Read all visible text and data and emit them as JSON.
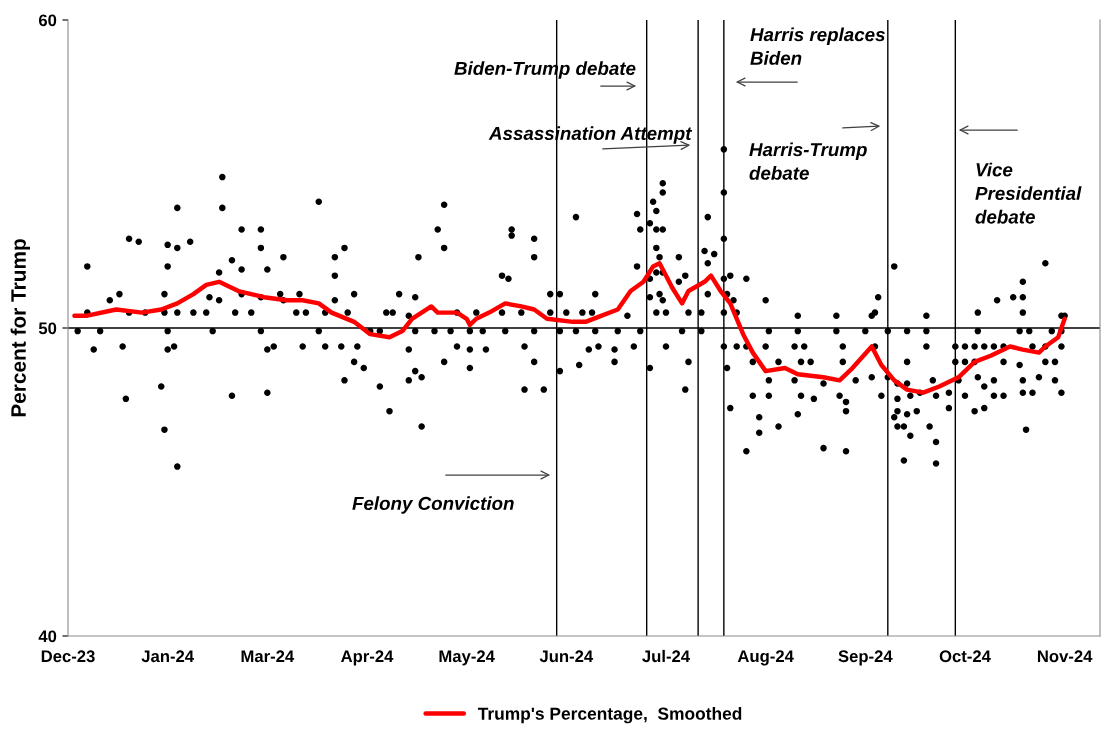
{
  "chart_data": {
    "type": "scatter",
    "ylabel": "Percent for Trump",
    "xlim": [
      "2023-12-30",
      "2024-11-15"
    ],
    "xticks": [
      {
        "value": "2023-12-30",
        "label": "Dec-23"
      },
      {
        "value": "2024-01-30",
        "label": "Jan-24"
      },
      {
        "value": "2024-03-01",
        "label": "Mar-24"
      },
      {
        "value": "2024-04-01",
        "label": "Apr-24"
      },
      {
        "value": "2024-05-02",
        "label": "May-24"
      },
      {
        "value": "2024-06-02",
        "label": "Jun-24"
      },
      {
        "value": "2024-07-03",
        "label": "Jul-24"
      },
      {
        "value": "2024-08-03",
        "label": "Aug-24"
      },
      {
        "value": "2024-09-03",
        "label": "Sep-24"
      },
      {
        "value": "2024-10-04",
        "label": "Oct-24"
      },
      {
        "value": "2024-11-04",
        "label": "Nov-24"
      }
    ],
    "ylim": [
      40,
      60
    ],
    "yticks": [
      40,
      50,
      60
    ],
    "grid": false,
    "legend": "bottom",
    "ref_lines": [
      {
        "axis": "y",
        "value": 50,
        "color": "#000000"
      },
      {
        "axis": "x",
        "value": "2024-05-30",
        "label": "Felony Conviction",
        "color": "#000000"
      },
      {
        "axis": "x",
        "value": "2024-06-27",
        "label": "Biden-Trump debate",
        "color": "#000000"
      },
      {
        "axis": "x",
        "value": "2024-07-13",
        "label": "Assassination Attempt",
        "color": "#000000"
      },
      {
        "axis": "x",
        "value": "2024-07-21",
        "label": "Harris replaces\nBiden",
        "color": "#000000"
      },
      {
        "axis": "x",
        "value": "2024-09-10",
        "label": "Harris-Trump\ndebate",
        "color": "#000000"
      },
      {
        "axis": "x",
        "value": "2024-10-01",
        "label": "Vice\nPresidential\ndebate",
        "color": "#000000"
      }
    ],
    "series": [
      {
        "type": "scatter",
        "color": "#000000",
        "marker": "circle",
        "x": [
          "2024-01-02",
          "2024-01-05",
          "2024-01-05",
          "2024-01-07",
          "2024-01-09",
          "2024-01-12",
          "2024-01-15",
          "2024-01-16",
          "2024-01-17",
          "2024-01-18",
          "2024-01-18",
          "2024-01-21",
          "2024-01-23",
          "2024-01-28",
          "2024-01-29",
          "2024-01-29",
          "2024-01-30",
          "2024-01-30",
          "2024-01-29",
          "2024-01-30",
          "2024-01-30",
          "2024-02-01",
          "2024-02-02",
          "2024-02-02",
          "2024-02-02",
          "2024-02-02",
          "2024-02-06",
          "2024-02-07",
          "2024-02-11",
          "2024-02-12",
          "2024-02-13",
          "2024-02-15",
          "2024-02-15",
          "2024-02-16",
          "2024-02-16",
          "2024-02-19",
          "2024-02-19",
          "2024-02-20",
          "2024-02-22",
          "2024-02-22",
          "2024-02-22",
          "2024-02-25",
          "2024-02-28",
          "2024-02-28",
          "2024-02-28",
          "2024-02-28",
          "2024-03-01",
          "2024-03-01",
          "2024-03-01",
          "2024-03-03",
          "2024-03-05",
          "2024-03-06",
          "2024-03-06",
          "2024-03-10",
          "2024-03-11",
          "2024-03-12",
          "2024-03-13",
          "2024-03-17",
          "2024-03-17",
          "2024-03-19",
          "2024-03-19",
          "2024-03-22",
          "2024-03-22",
          "2024-03-22",
          "2024-03-24",
          "2024-03-25",
          "2024-03-25",
          "2024-03-26",
          "2024-03-28",
          "2024-03-29",
          "2024-03-28",
          "2024-03-31",
          "2024-04-02",
          "2024-04-05",
          "2024-04-05",
          "2024-04-07",
          "2024-04-08",
          "2024-04-09",
          "2024-04-11",
          "2024-04-14",
          "2024-04-14",
          "2024-04-14",
          "2024-04-16",
          "2024-04-17",
          "2024-04-16",
          "2024-04-18",
          "2024-04-18",
          "2024-04-16",
          "2024-04-22",
          "2024-04-23",
          "2024-04-25",
          "2024-04-25",
          "2024-04-25",
          "2024-04-27",
          "2024-04-29",
          "2024-04-29",
          "2024-05-03",
          "2024-05-03",
          "2024-05-03",
          "2024-05-05",
          "2024-05-08",
          "2024-05-07",
          "2024-05-13",
          "2024-05-15",
          "2024-05-16",
          "2024-05-16",
          "2024-05-13",
          "2024-05-14",
          "2024-05-19",
          "2024-05-20",
          "2024-05-20",
          "2024-05-23",
          "2024-05-23",
          "2024-05-23",
          "2024-05-23",
          "2024-05-26",
          "2024-05-28",
          "2024-05-28",
          "2024-05-31",
          "2024-05-31",
          "2024-05-31",
          "2024-06-02",
          "2024-06-05",
          "2024-06-05",
          "2024-06-06",
          "2024-06-07",
          "2024-06-09",
          "2024-06-10",
          "2024-06-11",
          "2024-06-11",
          "2024-06-12",
          "2024-06-17",
          "2024-06-17",
          "2024-06-18",
          "2024-06-21",
          "2024-06-23",
          "2024-06-24",
          "2024-06-25",
          "2024-06-24",
          "2024-06-25",
          "2024-06-28",
          "2024-06-28",
          "2024-06-28",
          "2024-06-28",
          "2024-06-29",
          "2024-06-30",
          "2024-07-02",
          "2024-07-02",
          "2024-06-30",
          "2024-07-02",
          "2024-06-30",
          "2024-07-01",
          "2024-06-30",
          "2024-07-02",
          "2024-07-01",
          "2024-07-02",
          "2024-06-30",
          "2024-07-03",
          "2024-07-03",
          "2024-07-07",
          "2024-07-07",
          "2024-07-09",
          "2024-07-10",
          "2024-07-08",
          "2024-07-10",
          "2024-07-09",
          "2024-07-14",
          "2024-07-14",
          "2024-07-15",
          "2024-07-16",
          "2024-07-16",
          "2024-07-18",
          "2024-07-16",
          "2024-07-21",
          "2024-07-21",
          "2024-07-21",
          "2024-07-21",
          "2024-07-21",
          "2024-07-21",
          "2024-07-23",
          "2024-07-22",
          "2024-07-24",
          "2024-07-25",
          "2024-07-22",
          "2024-07-23",
          "2024-07-25",
          "2024-07-28",
          "2024-07-28",
          "2024-07-28",
          "2024-07-30",
          "2024-07-30",
          "2024-08-01",
          "2024-08-01",
          "2024-08-03",
          "2024-08-03",
          "2024-08-04",
          "2024-08-04",
          "2024-08-04",
          "2024-08-07",
          "2024-08-07",
          "2024-08-12",
          "2024-08-12",
          "2024-08-13",
          "2024-08-13",
          "2024-08-13",
          "2024-08-14",
          "2024-08-14",
          "2024-08-15",
          "2024-08-17",
          "2024-08-18",
          "2024-08-21",
          "2024-08-21",
          "2024-08-25",
          "2024-08-25",
          "2024-08-26",
          "2024-08-27",
          "2024-08-27",
          "2024-08-28",
          "2024-08-28",
          "2024-08-28",
          "2024-08-31",
          "2024-09-03",
          "2024-09-05",
          "2024-09-05",
          "2024-09-07",
          "2024-09-06",
          "2024-09-06",
          "2024-09-08",
          "2024-09-10",
          "2024-09-12",
          "2024-09-10",
          "2024-09-13",
          "2024-09-13",
          "2024-09-13",
          "2024-09-12",
          "2024-09-13",
          "2024-09-15",
          "2024-09-15",
          "2024-09-16",
          "2024-09-16",
          "2024-09-16",
          "2024-09-17",
          "2024-09-16",
          "2024-09-17",
          "2024-09-19",
          "2024-09-20",
          "2024-09-22",
          "2024-09-22",
          "2024-09-22",
          "2024-09-23",
          "2024-09-24",
          "2024-09-25",
          "2024-09-25",
          "2024-09-25",
          "2024-09-29",
          "2024-09-29",
          "2024-10-01",
          "2024-10-01",
          "2024-10-02",
          "2024-10-04",
          "2024-10-04",
          "2024-10-04",
          "2024-10-07",
          "2024-10-07",
          "2024-10-07",
          "2024-10-08",
          "2024-10-08",
          "2024-10-08",
          "2024-10-10",
          "2024-10-10",
          "2024-10-10",
          "2024-10-13",
          "2024-10-13",
          "2024-10-13",
          "2024-10-14",
          "2024-10-16",
          "2024-10-16",
          "2024-10-16",
          "2024-10-19",
          "2024-10-21",
          "2024-10-21",
          "2024-10-22",
          "2024-10-22",
          "2024-10-22",
          "2024-10-22",
          "2024-10-22",
          "2024-10-24",
          "2024-10-23",
          "2024-10-25",
          "2024-10-25",
          "2024-10-27",
          "2024-10-29",
          "2024-10-29",
          "2024-10-29",
          "2024-11-01",
          "2024-11-01",
          "2024-10-31",
          "2024-11-03",
          "2024-11-03",
          "2024-11-03",
          "2024-11-03",
          "2024-11-04"
        ],
        "values": [
          49.9,
          52.0,
          50.5,
          49.3,
          49.9,
          50.9,
          51.1,
          49.4,
          47.7,
          52.9,
          50.5,
          52.8,
          50.5,
          48.1,
          46.7,
          51.1,
          52.7,
          52.0,
          50.5,
          49.9,
          49.3,
          49.4,
          53.9,
          52.6,
          45.5,
          50.5,
          52.8,
          50.5,
          50.5,
          51.0,
          49.9,
          51.8,
          50.9,
          54.9,
          53.9,
          52.2,
          47.8,
          50.5,
          53.2,
          51.9,
          51.1,
          50.5,
          49.9,
          53.2,
          52.6,
          51.0,
          51.9,
          49.3,
          47.9,
          49.4,
          51.1,
          52.3,
          50.9,
          50.5,
          51.1,
          49.4,
          50.5,
          54.1,
          49.9,
          50.5,
          49.4,
          52.3,
          51.7,
          50.9,
          49.4,
          52.6,
          48.3,
          50.5,
          51.1,
          49.4,
          48.9,
          48.7,
          49.9,
          49.9,
          48.1,
          50.5,
          47.3,
          50.5,
          51.1,
          49.3,
          48.3,
          50.4,
          51.0,
          52.3,
          48.6,
          48.4,
          46.8,
          49.9,
          49.9,
          53.2,
          54.0,
          52.6,
          48.9,
          49.9,
          50.5,
          49.4,
          49.3,
          48.7,
          49.9,
          50.5,
          49.3,
          49.9,
          51.7,
          51.6,
          53.2,
          53.0,
          50.5,
          49.9,
          50.5,
          49.4,
          48.0,
          52.9,
          52.3,
          49.9,
          48.9,
          48.0,
          51.1,
          50.5,
          51.1,
          49.9,
          48.6,
          50.5,
          53.6,
          49.9,
          48.8,
          50.5,
          49.3,
          50.5,
          51.1,
          49.9,
          49.4,
          48.9,
          49.3,
          49.9,
          50.4,
          49.4,
          53.7,
          53.2,
          52.0,
          49.9,
          53.4,
          51.6,
          51.0,
          48.7,
          54.1,
          53.8,
          54.7,
          54.4,
          53.2,
          53.2,
          52.6,
          52.3,
          51.8,
          51.8,
          51.1,
          50.9,
          50.5,
          50.5,
          49.4,
          52.3,
          51.5,
          51.7,
          50.5,
          49.9,
          48.9,
          48.0,
          50.5,
          49.9,
          52.5,
          53.6,
          52.1,
          52.4,
          51.1,
          55.8,
          54.4,
          52.9,
          51.6,
          50.5,
          49.4,
          51.7,
          51.1,
          50.9,
          50.5,
          48.7,
          47.4,
          49.4,
          51.6,
          49.4,
          46.0,
          48.9,
          47.8,
          47.1,
          46.6,
          49.4,
          50.9,
          48.3,
          47.8,
          49.9,
          48.9,
          46.8,
          49.4,
          48.3,
          50.4,
          49.9,
          47.2,
          48.9,
          47.8,
          49.4,
          48.9,
          47.7,
          46.1,
          48.2,
          50.4,
          49.9,
          47.8,
          49.4,
          48.9,
          47.3,
          46.0,
          47.6,
          48.3,
          49.9,
          48.4,
          50.4,
          51.0,
          50.5,
          49.4,
          47.8,
          49.9,
          52.0,
          48.4,
          48.2,
          47.7,
          47.3,
          47.1,
          46.8,
          46.8,
          45.7,
          49.9,
          48.9,
          48.2,
          47.8,
          47.2,
          46.5,
          47.3,
          47.9,
          50.4,
          49.9,
          49.4,
          46.8,
          48.3,
          47.8,
          46.3,
          45.6,
          47.9,
          47.4,
          49.4,
          48.9,
          48.3,
          49.4,
          48.9,
          47.8,
          49.4,
          48.9,
          47.3,
          50.5,
          49.9,
          48.4,
          49.4,
          48.1,
          47.4,
          49.4,
          48.3,
          47.8,
          50.9,
          49.4,
          48.9,
          47.8,
          51.0,
          49.9,
          48.8,
          48.3,
          47.9,
          51.5,
          51.0,
          50.5,
          49.9,
          46.7,
          49.4,
          47.9,
          48.4,
          52.1,
          49.4,
          48.9,
          48.9,
          48.3,
          49.9,
          50.4,
          49.9,
          49.4,
          47.9,
          50.4
        ]
      },
      {
        "type": "line",
        "name": "Trump's Percentage,  Smoothed",
        "color": "#ff0000",
        "line_style": "solid",
        "x": [
          "2024-01-01",
          "2024-01-05",
          "2024-01-14",
          "2024-01-22",
          "2024-01-28",
          "2024-02-02",
          "2024-02-07",
          "2024-02-11",
          "2024-02-15",
          "2024-02-21",
          "2024-02-29",
          "2024-03-07",
          "2024-03-12",
          "2024-03-17",
          "2024-03-21",
          "2024-03-28",
          "2024-04-02",
          "2024-04-08",
          "2024-04-12",
          "2024-04-15",
          "2024-04-21",
          "2024-04-23",
          "2024-04-29",
          "2024-05-02",
          "2024-05-03",
          "2024-05-05",
          "2024-05-09",
          "2024-05-14",
          "2024-05-19",
          "2024-05-23",
          "2024-05-27",
          "2024-06-04",
          "2024-06-08",
          "2024-06-13",
          "2024-06-18",
          "2024-06-22",
          "2024-06-26",
          "2024-06-29",
          "2024-07-01",
          "2024-07-05",
          "2024-07-08",
          "2024-07-10",
          "2024-07-15",
          "2024-07-17",
          "2024-07-20",
          "2024-07-23",
          "2024-07-27",
          "2024-07-30",
          "2024-08-03",
          "2024-08-09",
          "2024-08-13",
          "2024-08-21",
          "2024-08-26",
          "2024-08-30",
          "2024-09-05",
          "2024-09-08",
          "2024-09-12",
          "2024-09-16",
          "2024-09-21",
          "2024-09-26",
          "2024-10-02",
          "2024-10-07",
          "2024-10-12",
          "2024-10-18",
          "2024-10-22",
          "2024-10-27",
          "2024-10-29",
          "2024-11-02",
          "2024-11-04"
        ],
        "values": [
          50.4,
          50.4,
          50.6,
          50.5,
          50.6,
          50.8,
          51.1,
          51.4,
          51.5,
          51.2,
          51.0,
          50.9,
          50.9,
          50.8,
          50.5,
          50.2,
          49.8,
          49.7,
          49.9,
          50.3,
          50.7,
          50.5,
          50.5,
          50.3,
          50.1,
          50.3,
          50.5,
          50.8,
          50.7,
          50.6,
          50.3,
          50.2,
          50.2,
          50.4,
          50.6,
          51.2,
          51.5,
          52.0,
          52.1,
          51.3,
          50.8,
          51.2,
          51.5,
          51.7,
          51.2,
          50.8,
          49.8,
          49.2,
          48.6,
          48.7,
          48.5,
          48.4,
          48.3,
          48.7,
          49.4,
          48.8,
          48.3,
          48.0,
          47.9,
          48.1,
          48.4,
          48.9,
          49.1,
          49.4,
          49.3,
          49.2,
          49.4,
          49.7,
          50.3
        ]
      }
    ]
  }
}
